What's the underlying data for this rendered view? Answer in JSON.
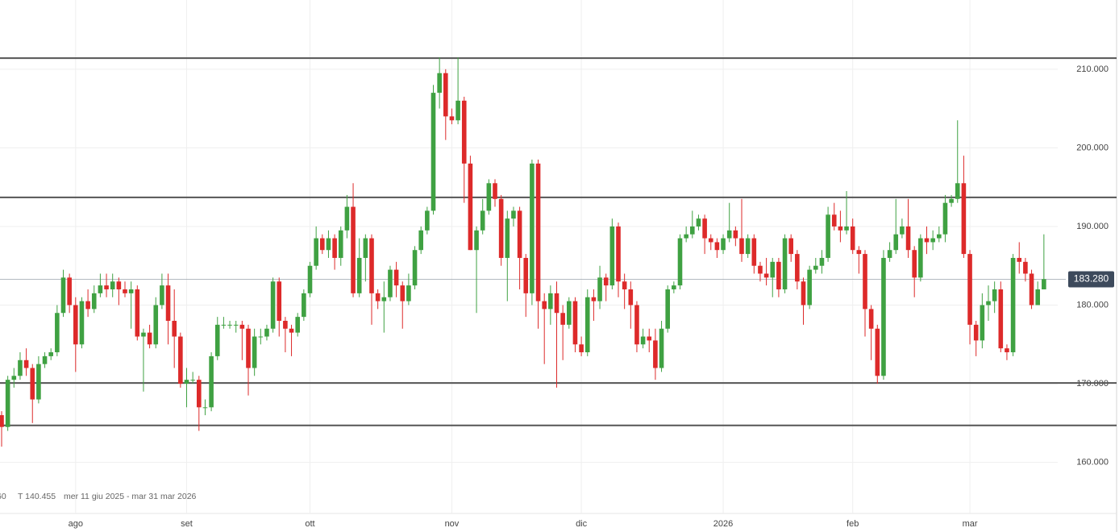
{
  "chart_data": {
    "type": "candlestick",
    "up_color": "#3fa142",
    "down_color": "#dd2a2a",
    "info": [
      "60",
      "T 140.455",
      "mer 11 giu 2025 - mar 31 mar 2026"
    ],
    "ylim": [
      153.5,
      218.8
    ],
    "yticks": [
      {
        "value": 160,
        "label": "160.000"
      },
      {
        "value": 170,
        "label": "170.000"
      },
      {
        "value": 180,
        "label": "180.000"
      },
      {
        "value": 190,
        "label": "190.000"
      },
      {
        "value": 200,
        "label": "200.000"
      },
      {
        "value": 210,
        "label": "210.000"
      }
    ],
    "grid": true,
    "levels": [
      211.4,
      193.7,
      170.1,
      164.7
    ],
    "last_price": {
      "value": 183.28,
      "label": "183.280"
    },
    "categories": [
      null,
      null,
      null,
      null,
      null,
      null,
      null,
      null,
      null,
      null,
      null,
      null,
      "ago",
      null,
      null,
      null,
      null,
      null,
      null,
      null,
      null,
      null,
      null,
      null,
      null,
      null,
      null,
      null,
      null,
      null,
      "set",
      null,
      null,
      null,
      null,
      null,
      null,
      null,
      null,
      null,
      null,
      null,
      null,
      null,
      null,
      null,
      null,
      null,
      null,
      null,
      "ott",
      null,
      null,
      null,
      null,
      null,
      null,
      null,
      null,
      null,
      null,
      null,
      null,
      null,
      null,
      null,
      null,
      null,
      null,
      null,
      null,
      null,
      null,
      "nov",
      null,
      null,
      null,
      null,
      null,
      null,
      null,
      null,
      null,
      null,
      null,
      null,
      null,
      null,
      null,
      null,
      null,
      null,
      null,
      null,
      "dic",
      null,
      null,
      null,
      null,
      null,
      null,
      null,
      null,
      null,
      null,
      null,
      null,
      null,
      null,
      null,
      null,
      null,
      null,
      null,
      null,
      null,
      null,
      "2026",
      null,
      null,
      null,
      null,
      null,
      null,
      null,
      null,
      null,
      null,
      null,
      null,
      null,
      null,
      null,
      null,
      null,
      null,
      null,
      null,
      "feb",
      null,
      null,
      null,
      null,
      null,
      null,
      null,
      null,
      null,
      null,
      null,
      null,
      null,
      null,
      null,
      null,
      null,
      null,
      "mar",
      null,
      null,
      null,
      null,
      null,
      null,
      null,
      null,
      null,
      null,
      null,
      null
    ],
    "open": [
      166,
      164.5,
      170.5,
      171,
      173,
      172,
      168,
      172.5,
      173.5,
      174,
      179,
      183.5,
      180,
      175,
      180.5,
      179.5,
      181.5,
      182.5,
      182,
      183,
      182,
      181.5,
      182,
      176,
      176.5,
      175,
      180,
      182.5,
      178,
      176,
      170,
      170.5,
      170.5,
      167,
      167,
      173.5,
      177.5,
      177.5,
      177.5,
      177.5,
      177,
      172,
      176,
      176,
      177,
      183,
      178,
      177,
      176.5,
      178.5,
      181.5,
      185,
      188.5,
      187,
      188.5,
      186,
      189.5,
      192.5,
      181.5,
      186,
      188.5,
      181.5,
      180.5,
      181,
      184.5,
      182.5,
      180.5,
      182.5,
      187,
      189.5,
      192,
      207,
      209.5,
      204,
      203.5,
      206,
      198,
      187,
      189.5,
      192,
      195.5,
      193.5,
      186,
      191,
      192,
      186,
      181.5,
      198,
      180.5,
      179.5,
      181.5,
      179,
      177.5,
      180.5,
      175,
      174,
      181,
      180.5,
      183.5,
      182.5,
      190,
      183,
      182,
      180,
      175,
      176,
      175.5,
      172,
      177,
      182,
      182.5,
      188.5,
      189,
      190,
      191,
      188.5,
      188,
      187,
      188.5,
      189.5,
      188.5,
      186.5,
      188.5,
      185,
      184,
      183.5,
      185.5,
      182,
      188.5,
      186.5,
      183,
      180,
      184.5,
      185,
      186,
      191.5,
      190,
      189.5,
      190,
      187,
      186.5,
      179.5,
      177,
      171,
      186,
      187,
      189,
      190,
      187,
      183.5,
      188.5,
      188,
      188.5,
      189,
      193,
      193.5,
      195.5,
      186.5,
      177.5,
      175.5,
      180,
      180.5,
      182,
      174.5,
      174,
      186,
      185.5,
      184,
      180,
      182
    ],
    "high": [
      166.5,
      171,
      172,
      174,
      174.5,
      172.5,
      173.5,
      174,
      174.5,
      180,
      184.5,
      184,
      181,
      181,
      182,
      182.5,
      184,
      184,
      184,
      183.5,
      183,
      183,
      182.5,
      177,
      177.5,
      181,
      184,
      184,
      182,
      176.5,
      172,
      171.5,
      171,
      168,
      174,
      178.5,
      178.5,
      178,
      178,
      178,
      177.5,
      177,
      177,
      177.5,
      183.5,
      183.5,
      178.5,
      177.5,
      179,
      182,
      185.5,
      190,
      189,
      189.5,
      189,
      190,
      194,
      195.5,
      188.5,
      189,
      189,
      182,
      183,
      185,
      185.5,
      183,
      184,
      187.5,
      190,
      192.5,
      208,
      211.5,
      210,
      205,
      211.5,
      206.5,
      199,
      190,
      193.5,
      196,
      196,
      194,
      192,
      192.5,
      192.5,
      186.5,
      198.5,
      198.5,
      181.5,
      182.5,
      183,
      180,
      181,
      181,
      176,
      182,
      182,
      185,
      184,
      191,
      190.5,
      184,
      183,
      180.5,
      177,
      177,
      177,
      178,
      182.5,
      183,
      189,
      190,
      192,
      191.5,
      191.5,
      189,
      188.5,
      189,
      193,
      190,
      193.5,
      189,
      189,
      185.5,
      186,
      186,
      186,
      189,
      189,
      187,
      183.5,
      185,
      186,
      187,
      192.5,
      193,
      192,
      194.5,
      191,
      187.5,
      187,
      180,
      177.5,
      187,
      188,
      193.5,
      191,
      193.5,
      187.5,
      189,
      190,
      189.5,
      190,
      194,
      194,
      203.5,
      199,
      187,
      178,
      181.5,
      182.5,
      183,
      183,
      175,
      186.5,
      188,
      186,
      184.5,
      183,
      189
    ],
    "low": [
      162,
      164,
      169.5,
      170.5,
      171,
      165,
      167.5,
      172,
      173,
      173.5,
      178.5,
      179,
      171.5,
      174.5,
      178.5,
      179,
      181,
      181,
      181,
      180,
      181,
      177,
      175.5,
      169,
      174.5,
      174.5,
      179.5,
      175,
      172,
      169.5,
      167,
      170,
      164,
      166,
      166.5,
      173,
      177,
      177,
      176.5,
      173,
      168.5,
      171,
      175,
      175.5,
      176.5,
      176,
      174,
      173.5,
      176,
      178,
      181,
      184.5,
      186.5,
      186,
      184.5,
      185,
      188.5,
      181,
      181,
      183,
      177.5,
      179.5,
      176.5,
      180.5,
      181,
      177,
      180,
      182,
      186.5,
      189,
      191.5,
      205,
      201,
      203,
      203,
      193,
      187,
      179,
      189,
      191.5,
      192.5,
      185,
      180.5,
      190,
      182,
      178.5,
      180,
      177,
      172.5,
      177.5,
      169.5,
      173,
      177,
      174,
      173.5,
      173.5,
      178,
      179.5,
      180.5,
      182,
      181,
      179.5,
      177,
      174,
      174.5,
      174,
      170.5,
      171.5,
      176.5,
      181.5,
      182,
      188,
      188.5,
      189.5,
      186.5,
      187,
      186,
      186.5,
      188,
      187.5,
      185.5,
      186,
      184,
      183,
      182.5,
      181,
      181,
      181.5,
      185.5,
      182,
      177.5,
      179.5,
      184,
      184,
      185.5,
      189.5,
      188,
      189,
      186.5,
      184,
      176,
      173,
      170,
      170.5,
      185.5,
      186.5,
      188.5,
      186,
      181,
      183,
      186.5,
      187,
      188,
      188,
      192.5,
      193,
      186,
      175,
      173.5,
      174.5,
      178,
      179,
      174,
      173,
      173.5,
      184,
      183,
      179.5,
      180,
      182.5
    ],
    "close": [
      164.5,
      170.5,
      171,
      173,
      172,
      168,
      172.5,
      173.5,
      174,
      179,
      183.5,
      180,
      175,
      180.5,
      179.5,
      181.5,
      182.5,
      182,
      183,
      182,
      181.5,
      182,
      176,
      176.5,
      175,
      180,
      182.5,
      178,
      176,
      170,
      170.5,
      170.5,
      167,
      167,
      173.5,
      177.5,
      177.5,
      177.5,
      177.5,
      177,
      172,
      176,
      176,
      177,
      183,
      178,
      177,
      176.5,
      178.5,
      181.5,
      185,
      188.5,
      187,
      188.5,
      186,
      189.5,
      192.5,
      181.5,
      186,
      188.5,
      181.5,
      180.5,
      181,
      184.5,
      182.5,
      180.5,
      182.5,
      187,
      189.5,
      192,
      207,
      209.5,
      204,
      203.5,
      206,
      198,
      187,
      189.5,
      192,
      195.5,
      193.5,
      186,
      191,
      192,
      186,
      181.5,
      198,
      180.5,
      179.5,
      181.5,
      179,
      177.5,
      180.5,
      175,
      174,
      181,
      180.5,
      183.5,
      182.5,
      190,
      183,
      182,
      180,
      175,
      176,
      175.5,
      172,
      177,
      182,
      182.5,
      188.5,
      189,
      190,
      191,
      188.5,
      188,
      187,
      188.5,
      189.5,
      188.5,
      186.5,
      188.5,
      185,
      184,
      183.5,
      185.5,
      182,
      188.5,
      186.5,
      183,
      180,
      184.5,
      185,
      186,
      191.5,
      190,
      189.5,
      190,
      187,
      186.5,
      179.5,
      177,
      171,
      186,
      187,
      189,
      190,
      187,
      183.5,
      188.5,
      188,
      188.5,
      189,
      193,
      193.5,
      195.5,
      186.5,
      177.5,
      175.5,
      180,
      180.5,
      182,
      174.5,
      174,
      186,
      185.5,
      184,
      180,
      182,
      183.3
    ]
  }
}
